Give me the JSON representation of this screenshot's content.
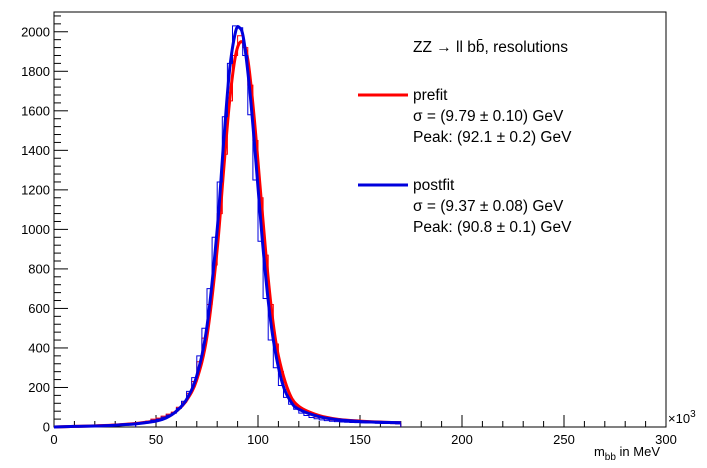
{
  "chart_data": {
    "type": "line",
    "title": "ZZ → ll bb̄, resolutions",
    "xlabel": "m",
    "xlabel_sub": "bb",
    "xlabel_suffix": " in MeV",
    "x_multiplier": "×10",
    "x_multiplier_exp": "3",
    "xlim": [
      0,
      300
    ],
    "ylim": [
      0,
      2100
    ],
    "x_ticks": [
      0,
      50,
      100,
      150,
      200,
      250,
      300
    ],
    "y_ticks": [
      0,
      200,
      400,
      600,
      800,
      1000,
      1200,
      1400,
      1600,
      1800,
      2000
    ],
    "legend_position": "top-right",
    "grid": false,
    "series": [
      {
        "name": "prefit",
        "color": "#ff0000",
        "sigma_text": "σ = (9.79 ± 0.10) GeV",
        "peak_text": "Peak: (92.1 ± 0.2) GeV",
        "hist_bins_x": [
          40,
          42.5,
          45,
          47.5,
          50,
          52.5,
          55,
          57.5,
          60,
          62.5,
          65,
          67.5,
          70,
          72.5,
          75,
          77.5,
          80,
          82.5,
          85,
          87.5,
          90,
          92.5,
          95,
          97.5,
          100,
          102.5,
          105,
          107.5,
          110,
          112.5,
          115,
          117.5,
          120,
          122.5,
          125,
          127.5,
          130,
          132.5,
          135,
          137.5,
          140,
          142.5,
          145,
          147.5,
          150,
          152.5,
          155,
          157.5,
          160,
          162.5,
          165,
          167.5
        ],
        "hist_counts": [
          18,
          25,
          30,
          40,
          45,
          55,
          65,
          75,
          100,
          125,
          170,
          230,
          330,
          450,
          620,
          820,
          1080,
          1380,
          1650,
          1880,
          1980,
          1920,
          1730,
          1450,
          1160,
          870,
          620,
          420,
          280,
          190,
          140,
          105,
          85,
          70,
          60,
          50,
          45,
          40,
          35,
          32,
          30,
          28,
          26,
          24,
          23,
          22,
          21,
          20,
          19,
          18,
          17,
          16
        ],
        "fit_x": [
          0,
          10,
          20,
          30,
          40,
          45,
          50,
          55,
          60,
          65,
          70,
          75,
          80,
          83,
          86,
          89,
          92,
          95,
          98,
          101,
          104,
          107,
          110,
          115,
          120,
          130,
          140,
          150,
          160,
          170
        ],
        "fit_y": [
          0,
          3,
          6,
          10,
          18,
          24,
          32,
          48,
          80,
          135,
          240,
          460,
          900,
          1280,
          1640,
          1880,
          1950,
          1860,
          1580,
          1220,
          860,
          560,
          360,
          180,
          105,
          58,
          38,
          30,
          25,
          22
        ]
      },
      {
        "name": "postfit",
        "color": "#0000dd",
        "sigma_text": "σ = (9.37 ± 0.08) GeV",
        "peak_text": "Peak: (90.8 ± 0.1) GeV",
        "hist_bins_x": [
          40,
          42.5,
          45,
          47.5,
          50,
          52.5,
          55,
          57.5,
          60,
          62.5,
          65,
          67.5,
          70,
          72.5,
          75,
          77.5,
          80,
          82.5,
          85,
          87.5,
          90,
          92.5,
          95,
          97.5,
          100,
          102.5,
          105,
          107.5,
          110,
          112.5,
          115,
          117.5,
          120,
          122.5,
          125,
          127.5,
          130,
          132.5,
          135,
          137.5,
          140,
          142.5,
          145,
          147.5,
          150,
          152.5,
          155,
          157.5,
          160,
          162.5,
          165,
          167.5
        ],
        "hist_counts": [
          15,
          22,
          28,
          35,
          40,
          50,
          60,
          70,
          95,
          130,
          180,
          250,
          360,
          500,
          700,
          960,
          1240,
          1570,
          1840,
          2030,
          2020,
          1880,
          1580,
          1250,
          940,
          650,
          440,
          300,
          210,
          150,
          115,
          90,
          70,
          58,
          48,
          42,
          36,
          32,
          29,
          27,
          25,
          24,
          23,
          22,
          21,
          20,
          20,
          19,
          18,
          18,
          17,
          16
        ],
        "fit_x": [
          0,
          10,
          20,
          30,
          40,
          45,
          50,
          55,
          60,
          65,
          70,
          75,
          80,
          83,
          86,
          89,
          91,
          93,
          96,
          99,
          102,
          105,
          108,
          112,
          116,
          120,
          130,
          140,
          150,
          160,
          170
        ],
        "fit_y": [
          0,
          3,
          5,
          9,
          16,
          22,
          30,
          46,
          80,
          140,
          260,
          510,
          1000,
          1420,
          1800,
          2000,
          2020,
          1960,
          1700,
          1340,
          960,
          640,
          410,
          220,
          130,
          90,
          52,
          36,
          28,
          24,
          22
        ]
      }
    ]
  }
}
